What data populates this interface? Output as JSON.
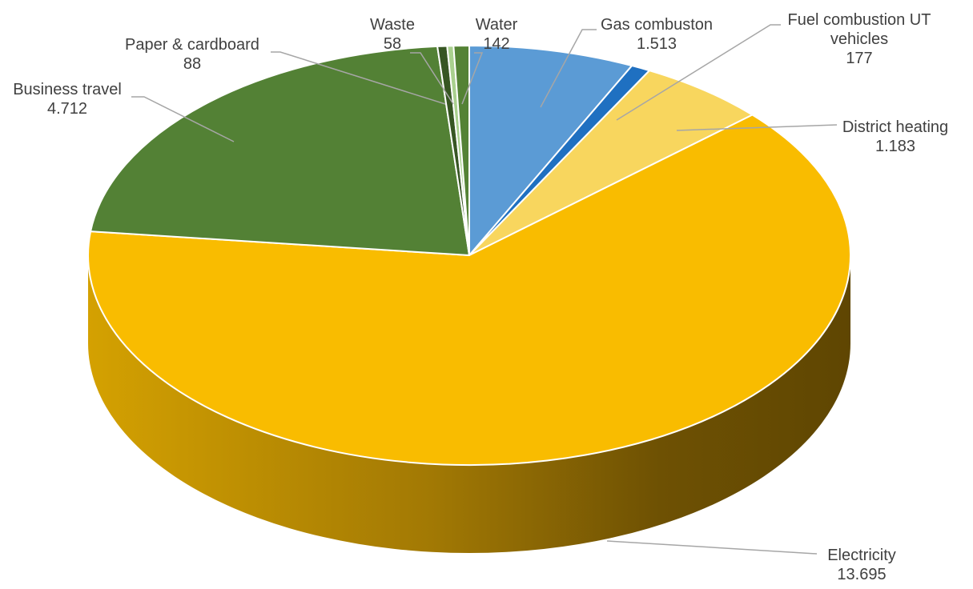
{
  "chart_data": {
    "type": "pie",
    "style": "3d",
    "categories": [
      "Gas combuston",
      "Fuel combustion UT vehicles",
      "District heating",
      "Electricity",
      "Business travel",
      "Paper & cardboard",
      "Waste",
      "Water"
    ],
    "values": [
      1513,
      177,
      1183,
      13695,
      4712,
      88,
      58,
      142
    ],
    "value_labels": [
      "1.513",
      "177",
      "1.183",
      "13.695",
      "4.712",
      "88",
      "58",
      "142"
    ],
    "label_lines": [
      [
        "Gas combuston",
        "1.513"
      ],
      [
        "Fuel combustion UT",
        "vehicles",
        "177"
      ],
      [
        "District heating",
        "1.183"
      ],
      [
        "Electricity",
        "13.695"
      ],
      [
        "Business travel",
        "4.712"
      ],
      [
        "Paper & cardboard",
        "88"
      ],
      [
        "Waste",
        "58"
      ],
      [
        "Water",
        "142"
      ]
    ],
    "colors": [
      "#5b9bd5",
      "#1f70c1",
      "#f8d65e",
      "#f9bc00",
      "#538135",
      "#375623",
      "#a9d08e",
      "#548235"
    ],
    "legend": "none",
    "start_angle_deg": 0,
    "direction": "clockwise"
  }
}
